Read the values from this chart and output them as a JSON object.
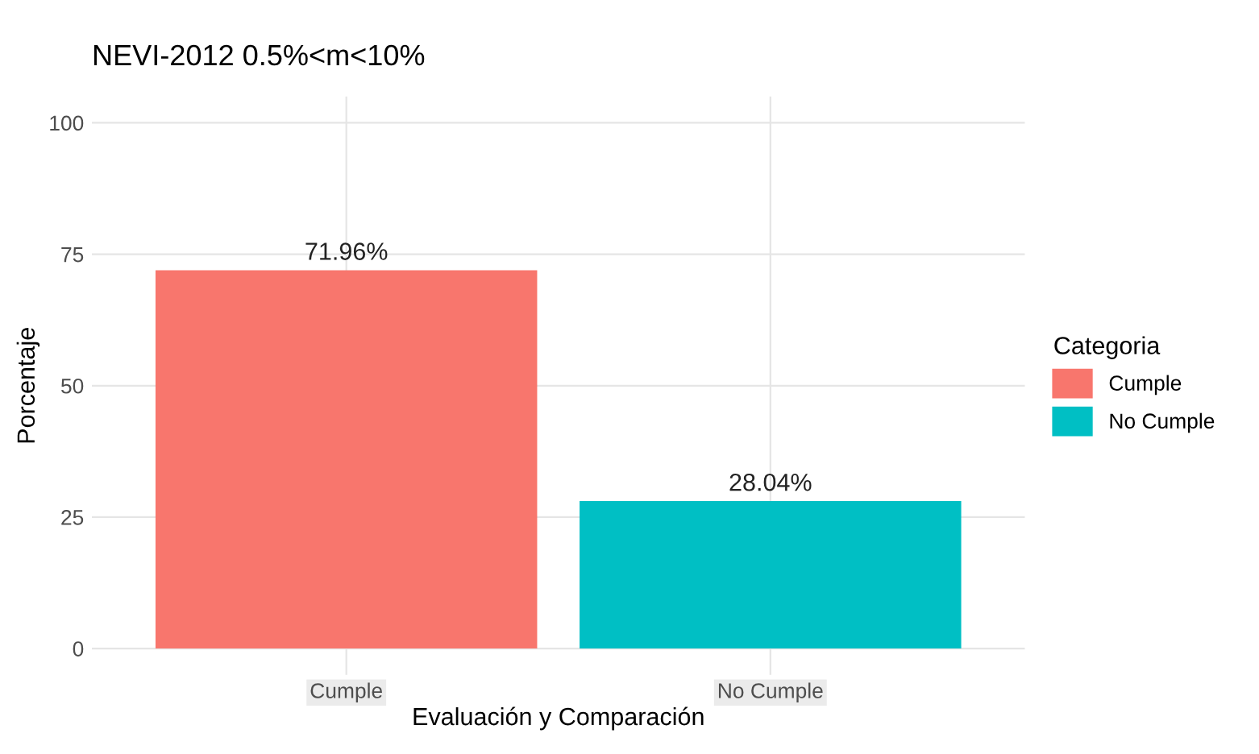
{
  "chart_data": {
    "type": "bar",
    "title": "NEVI-2012 0.5%<m<10%",
    "xlabel": "Evaluación y Comparación",
    "ylabel": "Porcentaje",
    "legend_title": "Categoria",
    "categories": [
      "Cumple",
      "No Cumple"
    ],
    "series": [
      {
        "name": "Cumple",
        "color": "#f8766d",
        "values": [
          71.96,
          null
        ]
      },
      {
        "name": "No Cumple",
        "color": "#00bfc4",
        "values": [
          null,
          28.04
        ]
      }
    ],
    "value_labels": [
      "71.96%",
      "28.04%"
    ],
    "ylim": [
      -5,
      105
    ],
    "yticks": [
      0,
      25,
      50,
      75,
      100
    ],
    "grid": true,
    "legend": "right"
  }
}
